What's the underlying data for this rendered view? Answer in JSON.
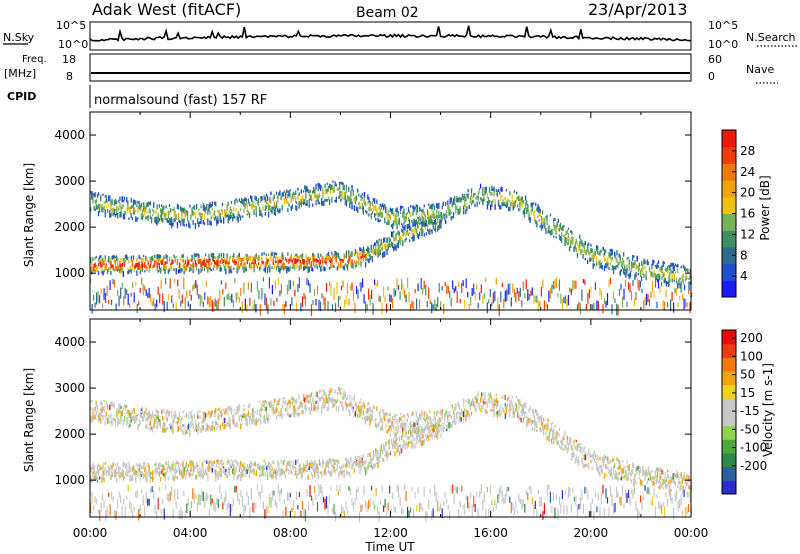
{
  "header": {
    "title": "Adak West (fitACF)",
    "beam": "Beam 02",
    "date": "23/Apr/2013"
  },
  "strip_panels": {
    "nsky": {
      "label": "N.Sky",
      "ticks": [
        "10^5",
        "10^0"
      ]
    },
    "nsearch": {
      "label": "N.Search",
      "ticks": [
        "10^5",
        "10^0"
      ]
    },
    "freq": {
      "label_top": "Freq.",
      "label_bottom": "[MHz]",
      "ticks": [
        "18",
        "8"
      ]
    },
    "nave": {
      "label": "Nave",
      "ticks": [
        "60",
        "0"
      ]
    },
    "cpid": {
      "label": "CPID",
      "text": "normalsound (fast) 157 RF"
    }
  },
  "chart_data": [
    {
      "type": "heatmap",
      "name": "power",
      "ylabel": "Slant Range [km]",
      "ylim": [
        200,
        4500
      ],
      "yticks": [
        "1000",
        "2000",
        "3000",
        "4000"
      ],
      "colorbar": {
        "label": "Power [dB]",
        "ticks": [
          "4",
          "8",
          "12",
          "16",
          "20",
          "24",
          "28"
        ],
        "colors": [
          "#1a1aff",
          "#1f4fd0",
          "#2d6a8e",
          "#3f8f66",
          "#76b45a",
          "#f2c10c",
          "#f2a20c",
          "#f07a0a",
          "#ee3d08",
          "#ee1a0a"
        ]
      },
      "bands": [
        {
          "label": "lower band",
          "x": [
            0,
            2,
            4,
            6,
            8,
            10,
            11,
            12,
            13,
            14
          ],
          "y": [
            1180,
            1200,
            1230,
            1250,
            1260,
            1270,
            1380,
            1700,
            1950,
            2150
          ]
        },
        {
          "label": "upper band",
          "x": [
            0,
            2,
            4,
            6,
            8,
            10,
            12,
            14,
            15.5,
            17,
            18,
            19,
            20,
            22,
            24
          ],
          "y": [
            2550,
            2350,
            2250,
            2400,
            2600,
            2800,
            2200,
            2300,
            2700,
            2600,
            2200,
            1800,
            1400,
            1100,
            900
          ]
        }
      ]
    },
    {
      "type": "heatmap",
      "name": "velocity",
      "ylabel": "Slant Range [km]",
      "ylim": [
        200,
        4500
      ],
      "yticks": [
        "1000",
        "2000",
        "3000",
        "4000"
      ],
      "colorbar": {
        "label": "Velocity [m s-1]",
        "ticks": [
          "200",
          "100",
          "50",
          "15",
          "-15",
          "-50",
          "-100",
          "-200"
        ],
        "colors": [
          "#2a2ad0",
          "#2a60a0",
          "#2f8a4a",
          "#4ea83a",
          "#8fd24e",
          "#c8c8c8",
          "#c8c8c8",
          "#f0d21a",
          "#f2a30e",
          "#f27a0a",
          "#ee3a10",
          "#ea0a0a"
        ]
      }
    }
  ],
  "xaxis": {
    "label": "Time UT",
    "ticks": [
      "00:00",
      "04:00",
      "08:00",
      "12:00",
      "16:00",
      "20:00",
      "00:00"
    ]
  }
}
